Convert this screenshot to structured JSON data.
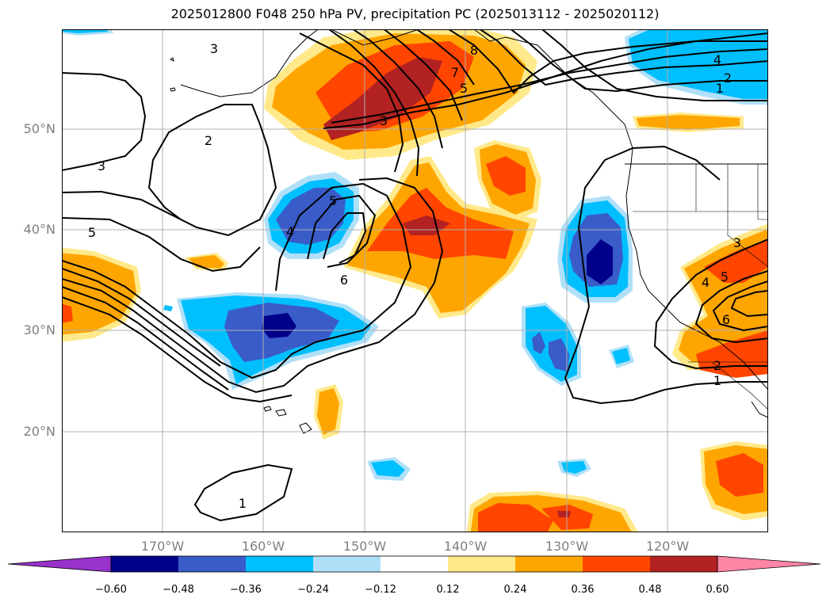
{
  "title": "2025012800 F048 250 hPa PV, precipitation PC (2025013112 - 2025020112)",
  "colors": {
    "neg_extend": "#9932cc",
    "neg_060": "#00008b",
    "neg_048": "#3a5cc9",
    "neg_036": "#00bfff",
    "neg_024": "#b0e0f8",
    "neutral": "#ffffff",
    "pos_012": "#ffe98a",
    "pos_024": "#ffa500",
    "pos_036": "#ff4500",
    "pos_048": "#b22222",
    "pos_extend": "#ff85a6",
    "grid": "#b0b0b0",
    "contour": "#000000",
    "label_gray": "#7f7f7f"
  },
  "axes": {
    "lat_labels": [
      "50°N",
      "40°N",
      "30°N",
      "20°N"
    ],
    "lon_labels": [
      "170°W",
      "160°W",
      "150°W",
      "140°W",
      "130°W",
      "120°W"
    ]
  },
  "colorbar": {
    "ticks": [
      "−0.60",
      "−0.48",
      "−0.36",
      "−0.24",
      "−0.12",
      "0.12",
      "0.24",
      "0.36",
      "0.48",
      "0.60"
    ]
  },
  "contour_labels": [
    "3",
    "2",
    "3",
    "5",
    "4",
    "5",
    "6",
    "8",
    "7",
    "5",
    "3",
    "4",
    "2",
    "1",
    "3",
    "4",
    "5",
    "6",
    "2",
    "1",
    "1"
  ]
}
